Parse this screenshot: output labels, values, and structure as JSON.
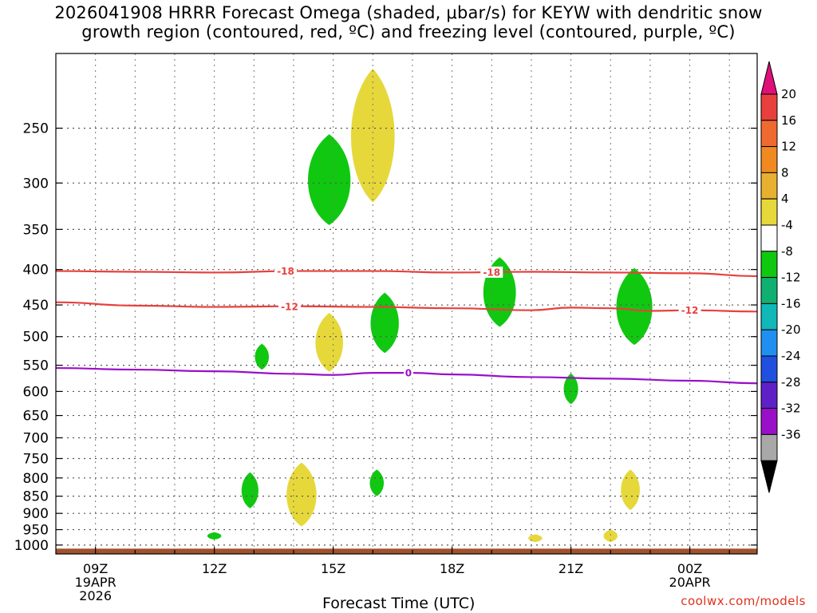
{
  "title": "2026041908 HRRR Forecast Omega (shaded, μbar/s) for KEYW with dendritic snow\ngrowth region (contoured, red, ºC) and freezing level (contoured, purple, ºC)",
  "credit": "coolwx.com/models",
  "chart_data": {
    "type": "contour",
    "xlabel": "Forecast Time (UTC)",
    "x_range_hours_utc": [
      8.0,
      25.7
    ],
    "y_axis": {
      "scale": "log-pressure",
      "inverted": true,
      "range_hpa": [
        1030,
        195
      ],
      "ticks": [
        250,
        300,
        350,
        400,
        450,
        500,
        550,
        600,
        650,
        700,
        750,
        800,
        850,
        900,
        950,
        1000
      ]
    },
    "x_ticks": [
      {
        "hour": 9,
        "lines": [
          "09Z",
          "19APR",
          "2026"
        ]
      },
      {
        "hour": 12,
        "lines": [
          "12Z"
        ]
      },
      {
        "hour": 15,
        "lines": [
          "15Z"
        ]
      },
      {
        "hour": 18,
        "lines": [
          "18Z"
        ]
      },
      {
        "hour": 21,
        "lines": [
          "21Z"
        ]
      },
      {
        "hour": 24,
        "lines": [
          "00Z",
          "20APR"
        ]
      }
    ],
    "grid": true,
    "terrain_color": "#a0522d",
    "contours": [
      {
        "label": "-18",
        "color": "#e8403c",
        "label_at_hours": [
          13.8,
          19.0
        ],
        "points": [
          [
            8.0,
            402
          ],
          [
            10,
            403
          ],
          [
            12,
            404
          ],
          [
            14,
            402
          ],
          [
            16,
            402
          ],
          [
            18,
            404
          ],
          [
            20,
            403
          ],
          [
            22,
            404
          ],
          [
            24,
            405
          ],
          [
            25.7,
            409
          ]
        ]
      },
      {
        "label": "-12",
        "color": "#e8403c",
        "label_at_hours": [
          13.9,
          24.0
        ],
        "points": [
          [
            8.0,
            446
          ],
          [
            10,
            451
          ],
          [
            12,
            453
          ],
          [
            14,
            452
          ],
          [
            16,
            453
          ],
          [
            18,
            455
          ],
          [
            20,
            458
          ],
          [
            21,
            454
          ],
          [
            22,
            455
          ],
          [
            23,
            459
          ],
          [
            24,
            458
          ],
          [
            25.7,
            460
          ]
        ]
      },
      {
        "label": "0",
        "color": "#9a10c8",
        "label_at_hours": [
          16.9
        ],
        "points": [
          [
            8.0,
            555
          ],
          [
            10,
            558
          ],
          [
            12,
            561
          ],
          [
            14,
            566
          ],
          [
            15,
            568
          ],
          [
            16,
            564
          ],
          [
            17,
            564
          ],
          [
            18,
            567
          ],
          [
            20,
            572
          ],
          [
            22,
            575
          ],
          [
            24,
            579
          ],
          [
            25.7,
            584
          ]
        ]
      }
    ],
    "shaded_regions": [
      {
        "level": "-8 to -4",
        "color": "#10c810",
        "center_hours": 14.9,
        "pressure_top": 255,
        "pressure_bottom": 345
      },
      {
        "level": "4 to 8",
        "color": "#e6d83a",
        "center_hours": 16.0,
        "pressure_top": 205,
        "pressure_bottom": 320
      },
      {
        "level": "-8 to -4",
        "color": "#10c810",
        "center_hours": 19.2,
        "pressure_top": 384,
        "pressure_bottom": 484
      },
      {
        "level": "-8 to -4",
        "color": "#10c810",
        "center_hours": 16.3,
        "pressure_top": 432,
        "pressure_bottom": 528
      },
      {
        "level": "4 to 8",
        "color": "#e6d83a",
        "center_hours": 14.9,
        "pressure_top": 462,
        "pressure_bottom": 562
      },
      {
        "level": "-8 to -4",
        "color": "#10c810",
        "center_hours": 22.6,
        "pressure_top": 398,
        "pressure_bottom": 514
      },
      {
        "level": "-8 to -4",
        "color": "#10c810",
        "center_hours": 13.2,
        "pressure_top": 512,
        "pressure_bottom": 558
      },
      {
        "level": "-8 to -4",
        "color": "#10c810",
        "center_hours": 21.0,
        "pressure_top": 565,
        "pressure_bottom": 626
      },
      {
        "level": "-8 to -4",
        "color": "#10c810",
        "center_hours": 12.9,
        "pressure_top": 785,
        "pressure_bottom": 885
      },
      {
        "level": "4 to 8",
        "color": "#e6d83a",
        "center_hours": 14.2,
        "pressure_top": 760,
        "pressure_bottom": 940
      },
      {
        "level": "-8 to -4",
        "color": "#10c810",
        "center_hours": 16.1,
        "pressure_top": 778,
        "pressure_bottom": 850
      },
      {
        "level": "4 to 8",
        "color": "#e6d83a",
        "center_hours": 22.5,
        "pressure_top": 778,
        "pressure_bottom": 890
      },
      {
        "level": "-8 to -4",
        "color": "#10c810",
        "center_hours": 12.0,
        "pressure_top": 958,
        "pressure_bottom": 982
      },
      {
        "level": "4 to 8",
        "color": "#e6d83a",
        "center_hours": 20.1,
        "pressure_top": 965,
        "pressure_bottom": 990
      },
      {
        "level": "4 to 8",
        "color": "#e6d83a",
        "center_hours": 22.0,
        "pressure_top": 950,
        "pressure_bottom": 990
      }
    ],
    "colorbar": {
      "labels": [
        "20",
        "16",
        "12",
        "8",
        "4",
        "-4",
        "-8",
        "-12",
        "-16",
        "-20",
        "-24",
        "-28",
        "-32",
        "-36"
      ],
      "colors": [
        "#e8403c",
        "#f06a30",
        "#f08a20",
        "#e8b030",
        "#e6d83a",
        "#ffffff",
        "#10c810",
        "#10b070",
        "#10b8b8",
        "#2090f0",
        "#2050e0",
        "#6020c8",
        "#9a10c8",
        "#a8a8a8"
      ],
      "top_arrow_color": "#e0107a",
      "bottom_arrow_color": "#000000"
    }
  }
}
